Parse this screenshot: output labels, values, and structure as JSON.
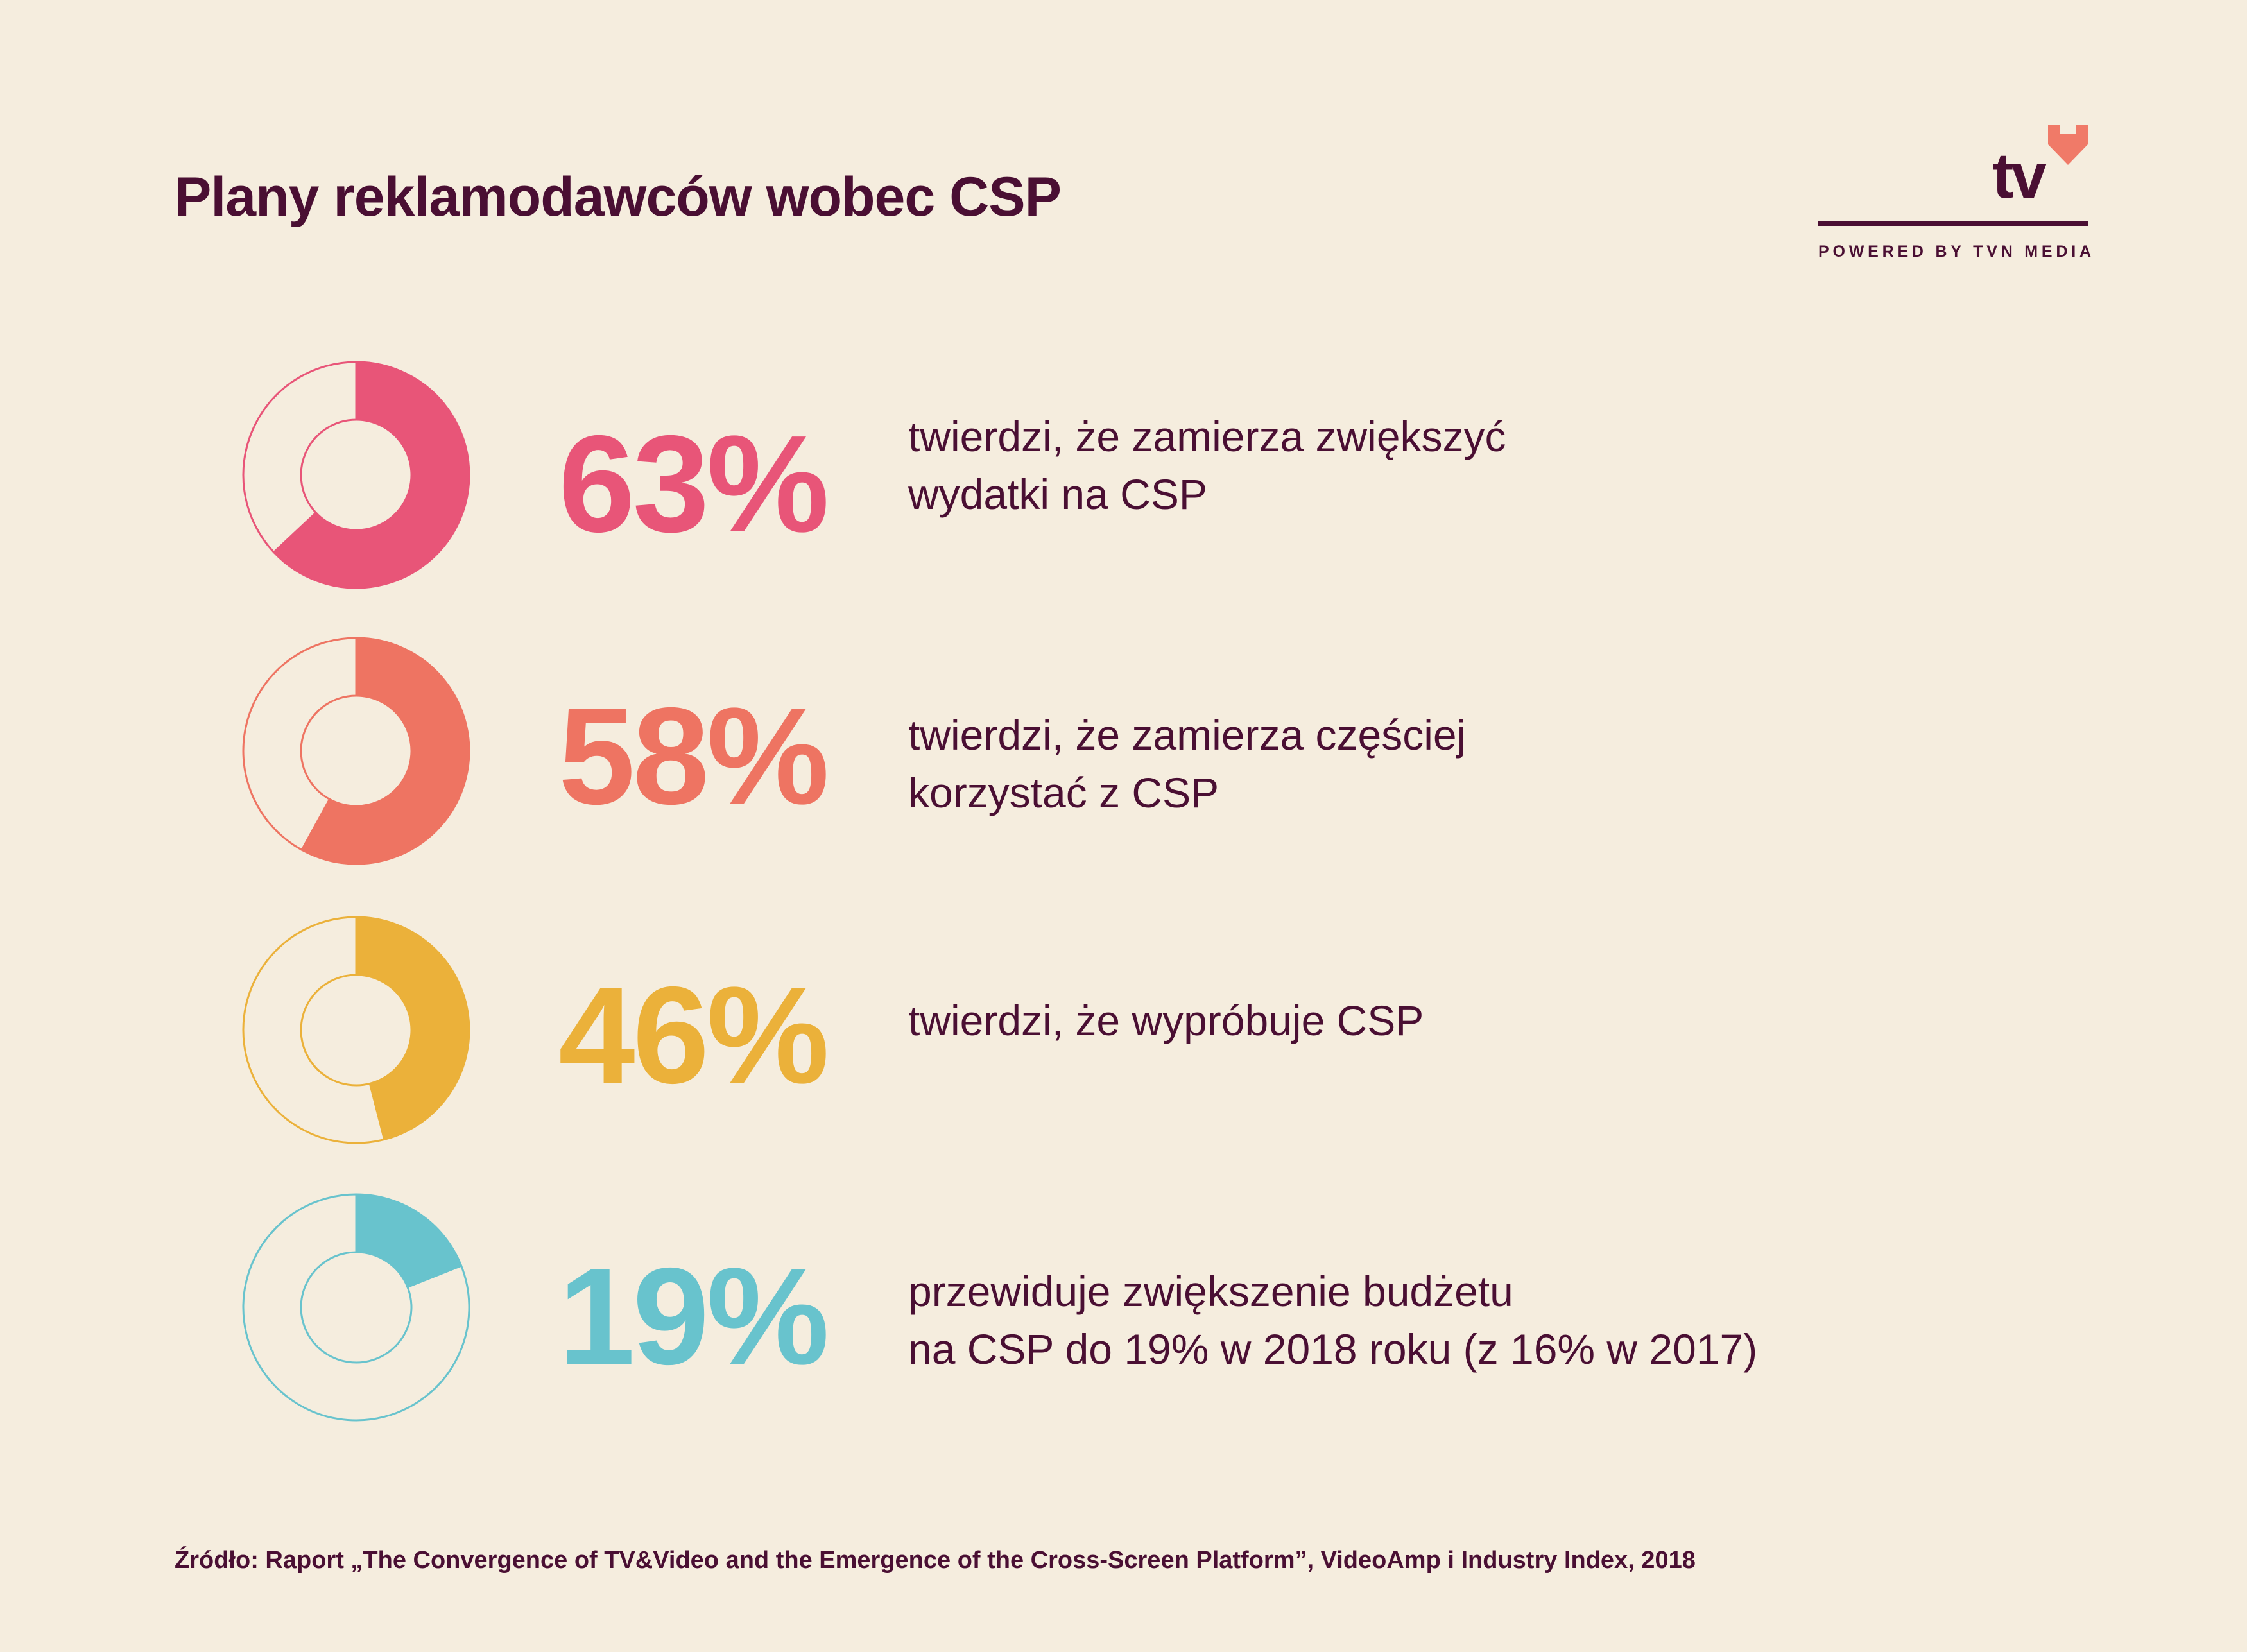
{
  "title": "Plany reklamodawców wobec CSP",
  "logo": {
    "wordmark": "tv",
    "tagline": "POWERED BY TVN MEDIA",
    "heart_color": "#F07A68",
    "icon": "heart-icon"
  },
  "chart_data": {
    "type": "pie",
    "variant": "donut",
    "items": [
      {
        "value": 63,
        "label": "63%",
        "color": "#E85578",
        "desc_lines": [
          "twierdzi, że zamierza zwiększyć",
          "wydatki na CSP"
        ]
      },
      {
        "value": 58,
        "label": "58%",
        "color": "#EE7462",
        "desc_lines": [
          "twierdzi, że zamierza częściej",
          "korzystać z CSP"
        ]
      },
      {
        "value": 46,
        "label": "46%",
        "color": "#EBB13A",
        "desc_lines": [
          "twierdzi, że wypróbuje CSP"
        ]
      },
      {
        "value": 19,
        "label": "19%",
        "color": "#68C3CD",
        "desc_lines": [
          "przewiduje zwiększenie budżetu",
          "na CSP do 19% w 2018 roku (z 16% w 2017)"
        ]
      }
    ]
  },
  "source": "Źródło: Raport „The Convergence of TV&Video and the Emergence of the Cross-Screen Platform”, VideoAmp i Industry Index, 2018"
}
